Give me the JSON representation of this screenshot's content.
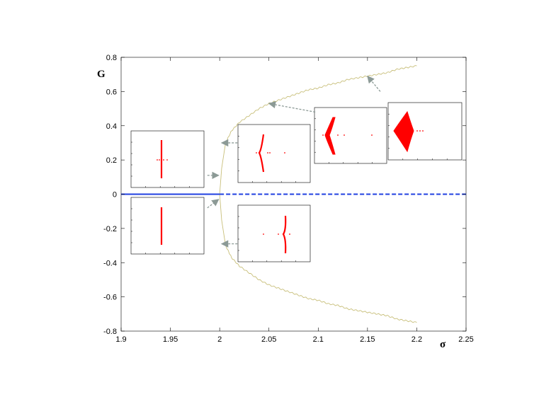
{
  "chart_data": {
    "type": "line",
    "title": "",
    "xlabel": "σ",
    "ylabel": "G",
    "xlim": [
      1.9,
      2.25
    ],
    "ylim": [
      -0.8,
      0.8
    ],
    "grid": false,
    "x_ticks": [
      "1.9",
      "1.95",
      "2",
      "2.05",
      "2.1",
      "2.15",
      "2.2",
      "2.25"
    ],
    "y_ticks": [
      "0.8",
      "0.6",
      "0.4",
      "0.2",
      "0",
      "-0.2",
      "-0.4",
      "-0.6",
      "-0.8"
    ],
    "colors": {
      "branch": "#c8bf7a",
      "zero_line": "#1f3fe0",
      "arrow": "#8c9a96",
      "insets": "#ff0000"
    },
    "series": [
      {
        "style": "thin-wavy",
        "x": [
          2.0,
          2.002,
          2.006,
          2.012,
          2.02,
          2.03,
          2.04,
          2.05,
          2.06,
          2.07,
          2.08,
          2.09,
          2.1,
          2.11,
          2.12,
          2.13,
          2.14,
          2.15,
          2.16,
          2.17,
          2.18,
          2.19,
          2.2
        ],
        "values": [
          0.0,
          0.15,
          0.3,
          0.37,
          0.42,
          0.46,
          0.5,
          0.53,
          0.55,
          0.57,
          0.59,
          0.61,
          0.62,
          0.64,
          0.65,
          0.67,
          0.68,
          0.69,
          0.7,
          0.71,
          0.73,
          0.74,
          0.75
        ]
      },
      {
        "style": "thin-wavy",
        "x": [
          2.0,
          2.002,
          2.006,
          2.012,
          2.02,
          2.03,
          2.04,
          2.05,
          2.06,
          2.07,
          2.08,
          2.09,
          2.1,
          2.11,
          2.12,
          2.13,
          2.14,
          2.15,
          2.16,
          2.17,
          2.18,
          2.19,
          2.2
        ],
        "values": [
          0.0,
          -0.15,
          -0.3,
          -0.37,
          -0.42,
          -0.46,
          -0.5,
          -0.53,
          -0.55,
          -0.57,
          -0.59,
          -0.61,
          -0.62,
          -0.64,
          -0.65,
          -0.67,
          -0.68,
          -0.69,
          -0.7,
          -0.71,
          -0.73,
          -0.74,
          -0.75
        ]
      },
      {
        "style": "solid",
        "x": [
          1.9,
          2.0
        ],
        "values": [
          0.0,
          0.0
        ]
      },
      {
        "style": "dashed",
        "x": [
          2.0,
          2.25
        ],
        "values": [
          0.0,
          0.0
        ]
      }
    ],
    "annotations": [
      {
        "type": "inset",
        "from": [
          1.9875,
          0.11
        ],
        "to": [
          1.999,
          0.11
        ]
      },
      {
        "type": "inset",
        "from": [
          1.9875,
          -0.08
        ],
        "to": [
          1.999,
          -0.03
        ]
      },
      {
        "type": "inset",
        "from": [
          2.018,
          0.3
        ],
        "to": [
          2.002,
          0.3
        ]
      },
      {
        "type": "inset",
        "from": [
          2.018,
          -0.29
        ],
        "to": [
          2.002,
          -0.29
        ]
      },
      {
        "type": "inset",
        "from": [
          2.097,
          0.48
        ],
        "to": [
          2.05,
          0.53
        ]
      },
      {
        "type": "inset",
        "from": [
          2.163,
          0.6
        ],
        "to": [
          2.15,
          0.69
        ]
      }
    ]
  }
}
